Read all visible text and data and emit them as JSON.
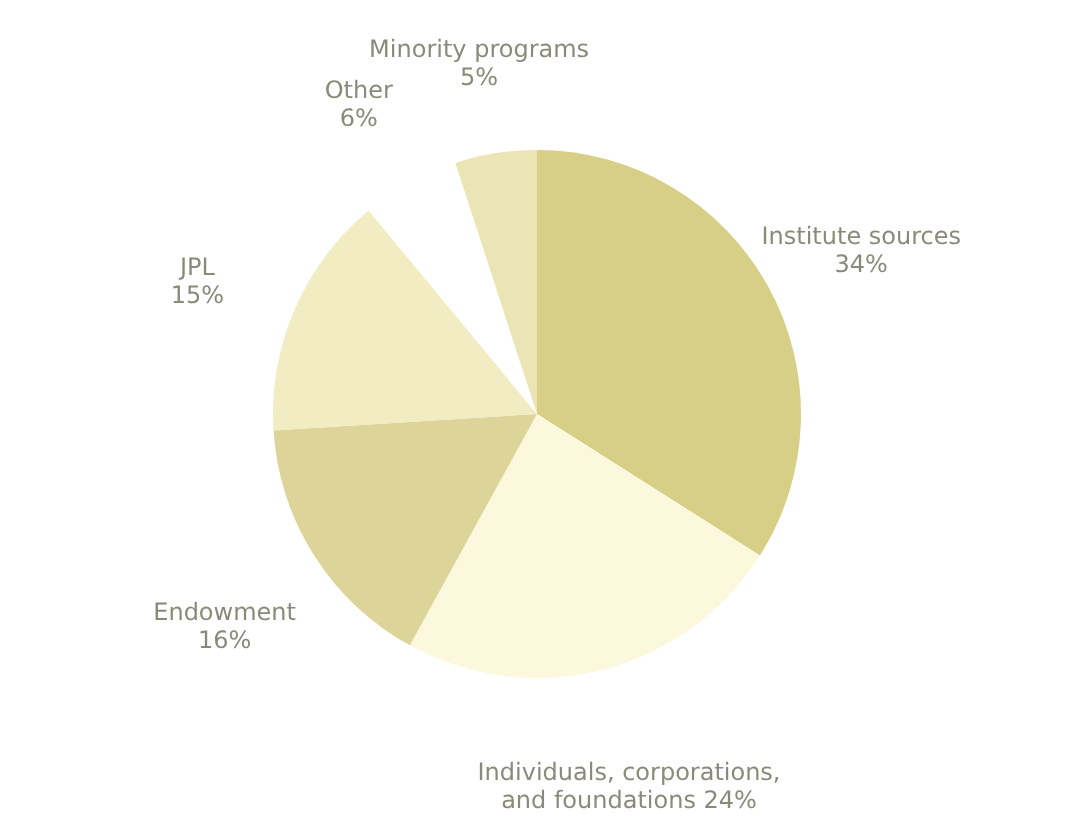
{
  "chart_data": {
    "type": "pie",
    "categories": [
      "Institute sources",
      "Individuals, corporations, and foundations",
      "Endowment",
      "JPL",
      "Other",
      "Minority programs"
    ],
    "values": [
      34,
      24,
      16,
      15,
      6,
      5
    ],
    "value_labels": [
      "34%",
      "24%",
      "16%",
      "15%",
      "6%",
      "5%"
    ],
    "colors": [
      "#d8cf86",
      "#fbf8de",
      "#ddd49a",
      "#f1ecc1",
      "#ffffff",
      "#ebe4b4"
    ]
  }
}
